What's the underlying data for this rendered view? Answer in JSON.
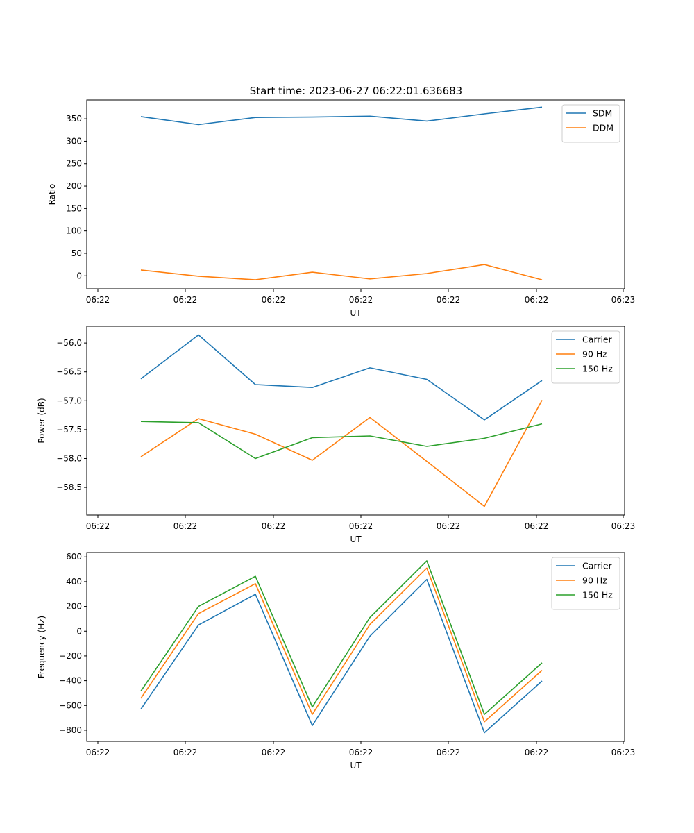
{
  "figure_title": "Start time: 2023-06-27 06:22:01.636683",
  "chart_data": [
    {
      "type": "line",
      "title": "Start time: 2023-06-27 06:22:01.636683",
      "xlabel": "UT",
      "ylabel": "Ratio",
      "x_tick_labels": [
        "06:22",
        "06:22",
        "06:22",
        "06:22",
        "06:22",
        "06:22",
        "06:23"
      ],
      "y_ticks": [
        0,
        50,
        100,
        150,
        200,
        250,
        300,
        350
      ],
      "ylim": [
        -29,
        392
      ],
      "legend_position": "top-right",
      "grid": false,
      "series": [
        {
          "name": "SDM",
          "color": "#1f77b4",
          "values": [
            355,
            337,
            353,
            354,
            356,
            345,
            361,
            376
          ]
        },
        {
          "name": "DDM",
          "color": "#ff7f0e",
          "values": [
            13,
            -1,
            -9,
            8,
            -7,
            5,
            25,
            -9
          ]
        }
      ]
    },
    {
      "type": "line",
      "title": "",
      "xlabel": "UT",
      "ylabel": "Power (dB)",
      "x_tick_labels": [
        "06:22",
        "06:22",
        "06:22",
        "06:22",
        "06:22",
        "06:22",
        "06:23"
      ],
      "y_ticks": [
        -58.5,
        -58.0,
        -57.5,
        -57.0,
        -56.5,
        -56.0
      ],
      "y_tick_labels": [
        "−58.5",
        "−58.0",
        "−57.5",
        "−57.0",
        "−56.5",
        "−56.0"
      ],
      "ylim": [
        -58.98,
        -55.71
      ],
      "legend_position": "top-right",
      "grid": false,
      "series": [
        {
          "name": "Carrier",
          "color": "#1f77b4",
          "values": [
            -56.62,
            -55.86,
            -56.72,
            -56.77,
            -56.43,
            -56.63,
            -57.33,
            -56.65
          ]
        },
        {
          "name": "90 Hz",
          "color": "#ff7f0e",
          "values": [
            -57.97,
            -57.31,
            -57.58,
            -58.03,
            -57.29,
            -58.05,
            -58.83,
            -56.99
          ]
        },
        {
          "name": "150 Hz",
          "color": "#2ca02c",
          "values": [
            -57.36,
            -57.38,
            -58.0,
            -57.64,
            -57.61,
            -57.79,
            -57.65,
            -57.4
          ]
        }
      ]
    },
    {
      "type": "line",
      "title": "",
      "xlabel": "UT",
      "ylabel": "Frequency (Hz)",
      "x_tick_labels": [
        "06:22",
        "06:22",
        "06:22",
        "06:22",
        "06:22",
        "06:22",
        "06:23"
      ],
      "y_ticks": [
        -800,
        -600,
        -400,
        -200,
        0,
        200,
        400,
        600
      ],
      "y_tick_labels": [
        "−800",
        "−600",
        "−400",
        "−200",
        "0",
        "200",
        "400",
        "600"
      ],
      "ylim": [
        -890,
        635
      ],
      "legend_position": "top-right",
      "grid": false,
      "series": [
        {
          "name": "Carrier",
          "color": "#1f77b4",
          "values": [
            -630,
            50,
            298,
            -762,
            -40,
            418,
            -820,
            -402
          ]
        },
        {
          "name": "90 Hz",
          "color": "#ff7f0e",
          "values": [
            -542,
            142,
            384,
            -672,
            54,
            510,
            -732,
            -316
          ]
        },
        {
          "name": "150 Hz",
          "color": "#2ca02c",
          "values": [
            -484,
            200,
            443,
            -612,
            110,
            568,
            -672,
            -256
          ]
        }
      ]
    }
  ]
}
